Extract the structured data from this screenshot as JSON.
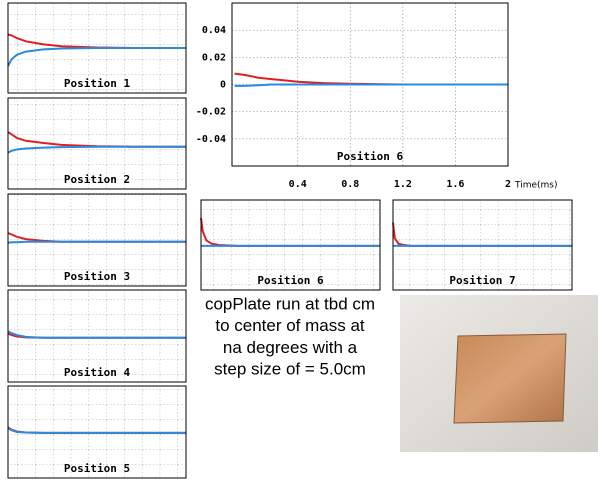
{
  "chart_data": [
    {
      "type": "line",
      "title": "Position 1",
      "xlim": [
        0,
        10
      ],
      "ylim": [
        -1,
        1
      ],
      "x": [
        0,
        0.2,
        0.5,
        1,
        2,
        3,
        5,
        7,
        10
      ],
      "series": [
        {
          "name": "red",
          "color": "#e02020",
          "values": [
            0.3,
            0.28,
            0.22,
            0.15,
            0.08,
            0.04,
            0.01,
            0,
            0
          ]
        },
        {
          "name": "blue",
          "color": "#2a8ae0",
          "values": [
            -0.4,
            -0.25,
            -0.15,
            -0.08,
            -0.03,
            -0.01,
            0,
            0,
            0
          ]
        }
      ]
    },
    {
      "type": "line",
      "title": "Position 2",
      "xlim": [
        0,
        10
      ],
      "ylim": [
        -1,
        1
      ],
      "x": [
        0,
        0.2,
        0.5,
        1,
        2,
        3,
        5,
        7,
        10
      ],
      "series": [
        {
          "name": "red",
          "color": "#e02020",
          "values": [
            0.25,
            0.2,
            0.12,
            0.06,
            0.01,
            -0.03,
            -0.06,
            -0.07,
            -0.07
          ]
        },
        {
          "name": "blue",
          "color": "#2a8ae0",
          "values": [
            -0.2,
            -0.16,
            -0.13,
            -0.11,
            -0.09,
            -0.08,
            -0.07,
            -0.07,
            -0.07
          ]
        }
      ]
    },
    {
      "type": "line",
      "title": "Position 3",
      "xlim": [
        0,
        10
      ],
      "ylim": [
        -1,
        1
      ],
      "x": [
        0,
        0.2,
        0.5,
        1,
        2,
        3,
        5,
        7,
        10
      ],
      "series": [
        {
          "name": "red",
          "color": "#e02020",
          "values": [
            0.15,
            0.12,
            0.07,
            0.02,
            -0.02,
            -0.04,
            -0.04,
            -0.04,
            -0.04
          ]
        },
        {
          "name": "blue",
          "color": "#2a8ae0",
          "values": [
            -0.06,
            -0.05,
            -0.05,
            -0.04,
            -0.04,
            -0.04,
            -0.04,
            -0.04,
            -0.04
          ]
        }
      ]
    },
    {
      "type": "line",
      "title": "Position 4",
      "xlim": [
        0,
        10
      ],
      "ylim": [
        -1,
        1
      ],
      "x": [
        0,
        0.2,
        0.5,
        1,
        2,
        3,
        5,
        7,
        10
      ],
      "series": [
        {
          "name": "red",
          "color": "#e02020",
          "values": [
            0.05,
            0.02,
            -0.01,
            -0.03,
            -0.04,
            -0.04,
            -0.04,
            -0.04,
            -0.04
          ]
        },
        {
          "name": "blue",
          "color": "#2a8ae0",
          "values": [
            0.1,
            0.06,
            0.02,
            -0.02,
            -0.04,
            -0.04,
            -0.04,
            -0.04,
            -0.04
          ]
        }
      ]
    },
    {
      "type": "line",
      "title": "Position 5",
      "xlim": [
        0,
        10
      ],
      "ylim": [
        -1,
        1
      ],
      "x": [
        0,
        0.2,
        0.5,
        1,
        2,
        3,
        5,
        7,
        10
      ],
      "series": [
        {
          "name": "red",
          "color": "#e02020",
          "values": [
            0.1,
            0.05,
            0.01,
            -0.01,
            -0.02,
            -0.02,
            -0.02,
            -0.02,
            -0.02
          ]
        },
        {
          "name": "blue",
          "color": "#2a8ae0",
          "values": [
            0.08,
            0.04,
            0,
            -0.01,
            -0.02,
            -0.02,
            -0.02,
            -0.02,
            -0.02
          ]
        }
      ]
    },
    {
      "type": "line",
      "title": "Position 6",
      "xlabel": "Time(ms)",
      "xlim": [
        -0.1,
        2
      ],
      "ylim": [
        -0.06,
        0.06
      ],
      "xticks": [
        0.4,
        0.8,
        1.2,
        1.6,
        2
      ],
      "yticks": [
        0.04,
        0.02,
        0,
        -0.02,
        -0.04
      ],
      "grid": true,
      "x": [
        -0.08,
        0,
        0.1,
        0.2,
        0.3,
        0.4,
        0.6,
        0.8,
        1.2,
        1.6,
        2
      ],
      "series": [
        {
          "name": "red",
          "color": "#e02020",
          "values": [
            0.008,
            0.007,
            0.005,
            0.004,
            0.003,
            0.002,
            0.001,
            0.0005,
            0,
            0,
            0
          ]
        },
        {
          "name": "blue",
          "color": "#2a8ae0",
          "values": [
            -0.001,
            -0.001,
            -0.0005,
            0,
            0,
            0,
            0,
            0,
            0,
            0,
            0
          ]
        }
      ]
    },
    {
      "type": "line",
      "title": "Position 6",
      "xlim": [
        0,
        10
      ],
      "ylim": [
        -1,
        1
      ],
      "x": [
        0,
        0.1,
        0.3,
        0.6,
        1,
        2,
        4,
        7,
        10
      ],
      "series": [
        {
          "name": "red",
          "color": "#e02020",
          "values": [
            0.6,
            0.3,
            0.1,
            0.03,
            0,
            -0.02,
            -0.02,
            -0.02,
            -0.02
          ]
        },
        {
          "name": "blue",
          "color": "#2a8ae0",
          "values": [
            -0.02,
            -0.02,
            -0.02,
            -0.02,
            -0.02,
            -0.02,
            -0.02,
            -0.02,
            -0.02
          ]
        }
      ]
    },
    {
      "type": "line",
      "title": "Position 7",
      "xlim": [
        0,
        10
      ],
      "ylim": [
        -1,
        1
      ],
      "x": [
        0,
        0.1,
        0.3,
        0.6,
        1,
        2,
        4,
        7,
        10
      ],
      "series": [
        {
          "name": "red",
          "color": "#e02020",
          "values": [
            0.5,
            0.15,
            0.03,
            0,
            -0.02,
            -0.02,
            -0.02,
            -0.02,
            -0.02
          ]
        },
        {
          "name": "blue",
          "color": "#2a8ae0",
          "values": [
            -0.02,
            -0.02,
            -0.02,
            -0.02,
            -0.02,
            -0.02,
            -0.02,
            -0.02,
            -0.02
          ]
        }
      ]
    }
  ],
  "caption": {
    "lines": [
      "copPlate run at tbd cm",
      "to center of mass at",
      "na degrees with a",
      "step size of = 5.0cm"
    ]
  }
}
